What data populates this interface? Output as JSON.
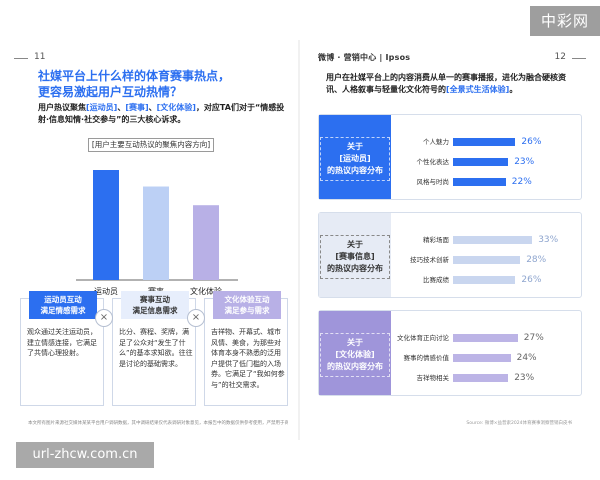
{
  "left_page": {
    "page_number": "11",
    "title_line1": "社媒平台上什么样的体育赛事热点，",
    "title_line2": "更容易激起用户互动热情？",
    "intro_prefix": "用户热议聚焦",
    "intro_hl1": "[运动员]",
    "intro_sep1": "、",
    "intro_hl2": "[赛事]",
    "intro_sep2": "、",
    "intro_hl3": "[文化体验]",
    "intro_suffix": "，对应TA们对于“情感投射·信息知情·社交参与”的三大核心诉求。",
    "chart_label": "[用户主要互动热议的聚焦内容方向]",
    "footer": "本文所有图片来源社交媒体某某平台用户调研数据，其中调研结果仅代表调研对象意见，本报告中的数据仅供参考使用，严禁用于商业用途。",
    "cards": [
      {
        "head1": "运动员互动",
        "head2": "满足情感需求",
        "body": "观众通过关注运动员，建立情感连接，它满足了共情心理投射。"
      },
      {
        "head1": "赛事互动",
        "head2": "满足信息需求",
        "body": "比分、赛程、奖牌，满足了公众对“发生了什么”的基本求知欲。往往是讨论的基础需求。"
      },
      {
        "head1": "文化体验互动",
        "head2": "满足参与需求",
        "body": "吉祥物、开幕式、城市风情、美食，为那些对体育本身不熟悉的泛用户提供了低门槛的入场券。它满足了“我如何参与”的社交需求。"
      }
    ],
    "x_symbol": "×"
  },
  "right_page": {
    "page_number": "12",
    "logo_text": "微博 · 营销中心 | Ipsos",
    "intro_prefix": "用户在社媒平台上的内容消费从单一的赛事播报，进化为融合硬核资讯、人格叙事与轻量化文化符号的",
    "intro_hl": "[全景式生活体验]",
    "intro_suffix": "。",
    "footer": "Source: 微博×益普索2024体育赛事洞察营销白皮书",
    "panels": [
      {
        "side1": "关于",
        "side2": "[运动员]",
        "side3": "的热议内容分布",
        "rows": [
          {
            "label": "个人魅力",
            "value": 26,
            "value_text": "26%"
          },
          {
            "label": "个性化表达",
            "value": 23,
            "value_text": "23%"
          },
          {
            "label": "风格与时尚",
            "value": 22,
            "value_text": "22%"
          }
        ]
      },
      {
        "side1": "关于",
        "side2": "[赛事信息]",
        "side3": "的热议内容分布",
        "rows": [
          {
            "label": "精彩场面",
            "value": 33,
            "value_text": "33%"
          },
          {
            "label": "技巧技术创新",
            "value": 28,
            "value_text": "28%"
          },
          {
            "label": "比赛成绩",
            "value": 26,
            "value_text": "26%"
          }
        ]
      },
      {
        "side1": "关于",
        "side2": "[文化体验]",
        "side3": "的热议内容分布",
        "rows": [
          {
            "label": "文化体育正向讨论",
            "value": 27,
            "value_text": "27%"
          },
          {
            "label": "赛事的情感价值",
            "value": 24,
            "value_text": "24%"
          },
          {
            "label": "吉祥物相关",
            "value": 23,
            "value_text": "23%"
          }
        ]
      }
    ]
  },
  "badges": {
    "top_right": "中彩网",
    "bottom_left": "url-zhcw.com.cn"
  },
  "watermark_text": "Ipsos",
  "colors": {
    "blue": "#2c6ff0",
    "light": "#e6ebf5",
    "purple": "#9f95da"
  },
  "chart_data": {
    "type": "bar",
    "title": "[用户主要互动热议的聚焦内容方向]",
    "categories": [
      "运动员",
      "赛事",
      "文化体验"
    ],
    "values": [
      100,
      85,
      68
    ],
    "xlabel": "",
    "ylabel": "",
    "ylim": [
      0,
      100
    ],
    "grid": false,
    "legend": "none"
  }
}
